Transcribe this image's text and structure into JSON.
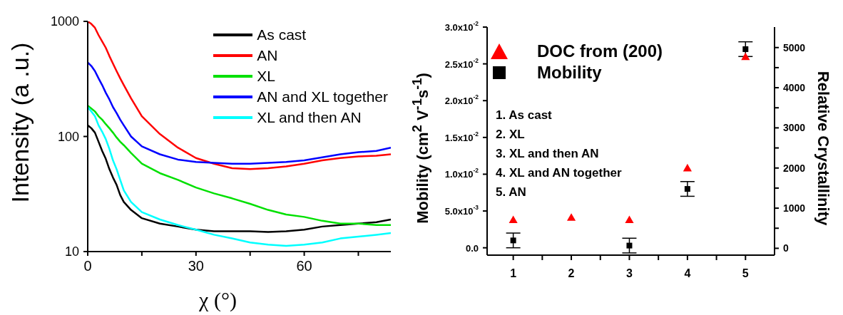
{
  "chart_data": [
    {
      "type": "line",
      "xlabel": "χ (°)",
      "ylabel": "Intensity (a .u.)",
      "log": "y",
      "legend": "top right",
      "marker": "none",
      "line_style": "solid",
      "x": [
        0,
        1,
        2,
        3,
        4,
        5,
        6,
        7,
        8,
        9,
        10,
        12,
        15,
        20,
        25,
        30,
        35,
        40,
        45,
        50,
        55,
        60,
        65,
        70,
        75,
        80,
        84
      ],
      "xlim": [
        0,
        84
      ],
      "xticks": [
        0,
        {
          "value": 15,
          "label": null
        },
        30,
        {
          "value": 45,
          "label": null
        },
        60,
        {
          "value": 75,
          "label": null
        }
      ],
      "ylim": [
        10,
        1000
      ],
      "yticks": [
        10,
        100,
        1000
      ],
      "series": [
        {
          "name": "As cast",
          "color": "#000000",
          "values": [
            125,
            118,
            108,
            90,
            75,
            64,
            52,
            44,
            38,
            31,
            27,
            23,
            19.5,
            17.5,
            16.5,
            15.5,
            15,
            15,
            15,
            14.8,
            15,
            15.5,
            16.5,
            17,
            17.5,
            18,
            19
          ]
        },
        {
          "name": "AN",
          "color": "#ff0000",
          "values": [
            1000,
            950,
            880,
            760,
            670,
            590,
            500,
            430,
            370,
            320,
            280,
            215,
            150,
            105,
            80,
            65,
            58,
            53,
            52,
            53,
            55,
            58,
            62,
            65,
            67,
            68,
            70
          ]
        },
        {
          "name": "XL",
          "color": "#00e000",
          "values": [
            185,
            175,
            165,
            150,
            140,
            128,
            118,
            108,
            98,
            90,
            84,
            72,
            58,
            48,
            42,
            36,
            32,
            29,
            26,
            23,
            21,
            20,
            18.5,
            17.5,
            17.5,
            17,
            17
          ]
        },
        {
          "name": "AN and XL together",
          "color": "#0000ff",
          "values": [
            440,
            410,
            370,
            320,
            280,
            240,
            210,
            180,
            160,
            140,
            125,
            100,
            82,
            70,
            63,
            60,
            59,
            58,
            58,
            59,
            60,
            62,
            66,
            70,
            73,
            75,
            80
          ]
        },
        {
          "name": "XL and then AN",
          "color": "#00ffff",
          "values": [
            180,
            165,
            150,
            125,
            110,
            95,
            78,
            62,
            52,
            42,
            34,
            27,
            22,
            19,
            17,
            15.5,
            14,
            13,
            12,
            11.5,
            11.2,
            11.5,
            12,
            13,
            13.5,
            14,
            14.5
          ]
        }
      ]
    },
    {
      "type": "scatter",
      "ylabel": "Mobility (cm$^{2}$ V$^{-1}$s$^{-1}$)",
      "y2label": "Relative Crystallinity",
      "legend": "top left",
      "x": [
        1,
        2,
        3,
        4,
        5
      ],
      "xlim": [
        0.55,
        5.5
      ],
      "xticks": [
        1,
        {
          "value": 1.5,
          "label": null
        },
        2,
        {
          "value": 2.5,
          "label": null
        },
        3,
        {
          "value": 3.5,
          "label": null
        },
        4,
        {
          "value": 4.5,
          "label": null
        },
        5
      ],
      "ylim": [
        -0.001,
        0.03
      ],
      "yticks": [
        {
          "value": 0,
          "label": "0.0"
        },
        {
          "value": 0.005,
          "label": "5.0x10$^{-3}$"
        },
        {
          "value": 0.01,
          "label": "1.0x10$^{-2}$"
        },
        {
          "value": 0.015,
          "label": "1.5x10$^{-2}$"
        },
        {
          "value": 0.02,
          "label": "2.0x10$^{-2}$"
        },
        {
          "value": 0.025,
          "label": "2.5x10$^{-2}$"
        },
        {
          "value": 0.03,
          "label": "3.0x10$^{-2}$"
        }
      ],
      "y2lim": [
        -170,
        5510
      ],
      "y2ticks": [
        0,
        {
          "value": 500,
          "label": null
        },
        1000,
        {
          "value": 1500,
          "label": null
        },
        2000,
        {
          "value": 2500,
          "label": null
        },
        3000,
        {
          "value": 3500,
          "label": null
        },
        4000,
        {
          "value": 4500,
          "label": null
        },
        5000
      ],
      "annotations": [
        "1. As cast",
        "2. XL",
        "3. XL and then AN",
        "4. XL and AN together",
        "5. AN"
      ],
      "series": [
        {
          "name": "DOC from (200)",
          "color": "#ff0000",
          "marker": "triangle",
          "axis": "y2",
          "values": [
            690,
            750,
            690,
            1980,
            4750
          ]
        },
        {
          "name": "Mobility",
          "color": "#000000",
          "marker": "square",
          "values": [
            0.001,
            null,
            0.0003,
            0.008,
            0.027
          ],
          "errors": [
            0.001,
            null,
            0.001,
            0.001,
            0.001
          ]
        }
      ]
    }
  ]
}
